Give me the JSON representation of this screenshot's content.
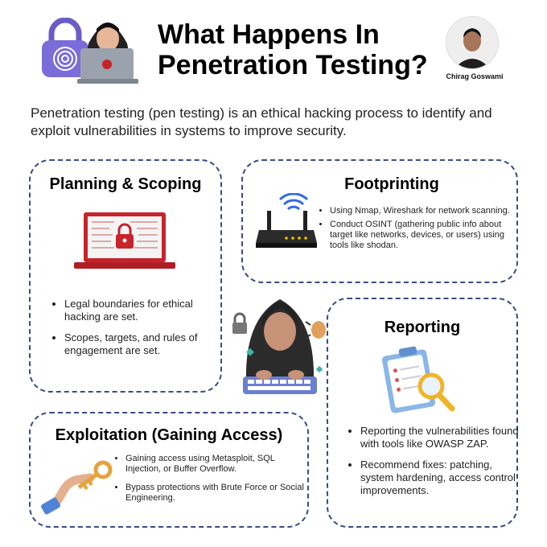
{
  "header": {
    "title_line1": "What Happens In",
    "title_line2": "Penetration Testing?",
    "author": "Chirag Goswami"
  },
  "intro": "Penetration testing (pen testing) is an ethical hacking process to identify and exploit vulnerabilities in systems to improve security.",
  "cards": {
    "planning": {
      "title": "Planning & Scoping",
      "points": [
        "Legal boundaries for ethical hacking are set.",
        "Scopes, targets, and rules of engagement are set."
      ]
    },
    "footprinting": {
      "title": "Footprinting",
      "points": [
        "Using Nmap, Wireshark for network scanning.",
        "Conduct OSINT  (gathering public info about target like networks, devices, or users) using tools like shodan."
      ]
    },
    "reporting": {
      "title": "Reporting",
      "points": [
        "Reporting the vulnerabilities found with tools like OWASP ZAP.",
        "Recommend fixes: patching, system hardening, access control improvements."
      ]
    },
    "exploitation": {
      "title": "Exploitation (Gaining Access)",
      "points": [
        "Gaining access using Metasploit, SQL Injection, or Buffer Overflow.",
        "Bypass protections with Brute Force or Social Engineering."
      ]
    }
  },
  "colors": {
    "card_border": "#3b4a8c",
    "accent_red": "#c8222a",
    "hoodie": "#2b2b2b"
  },
  "icons": [
    "fingerprint-lock-icon",
    "hacker-laptop-icon",
    "author-photo",
    "red-laptop-lock-icon",
    "wifi-router-icon",
    "hooded-hacker-icon",
    "clipboard-magnifier-icon",
    "hand-key-icon"
  ]
}
